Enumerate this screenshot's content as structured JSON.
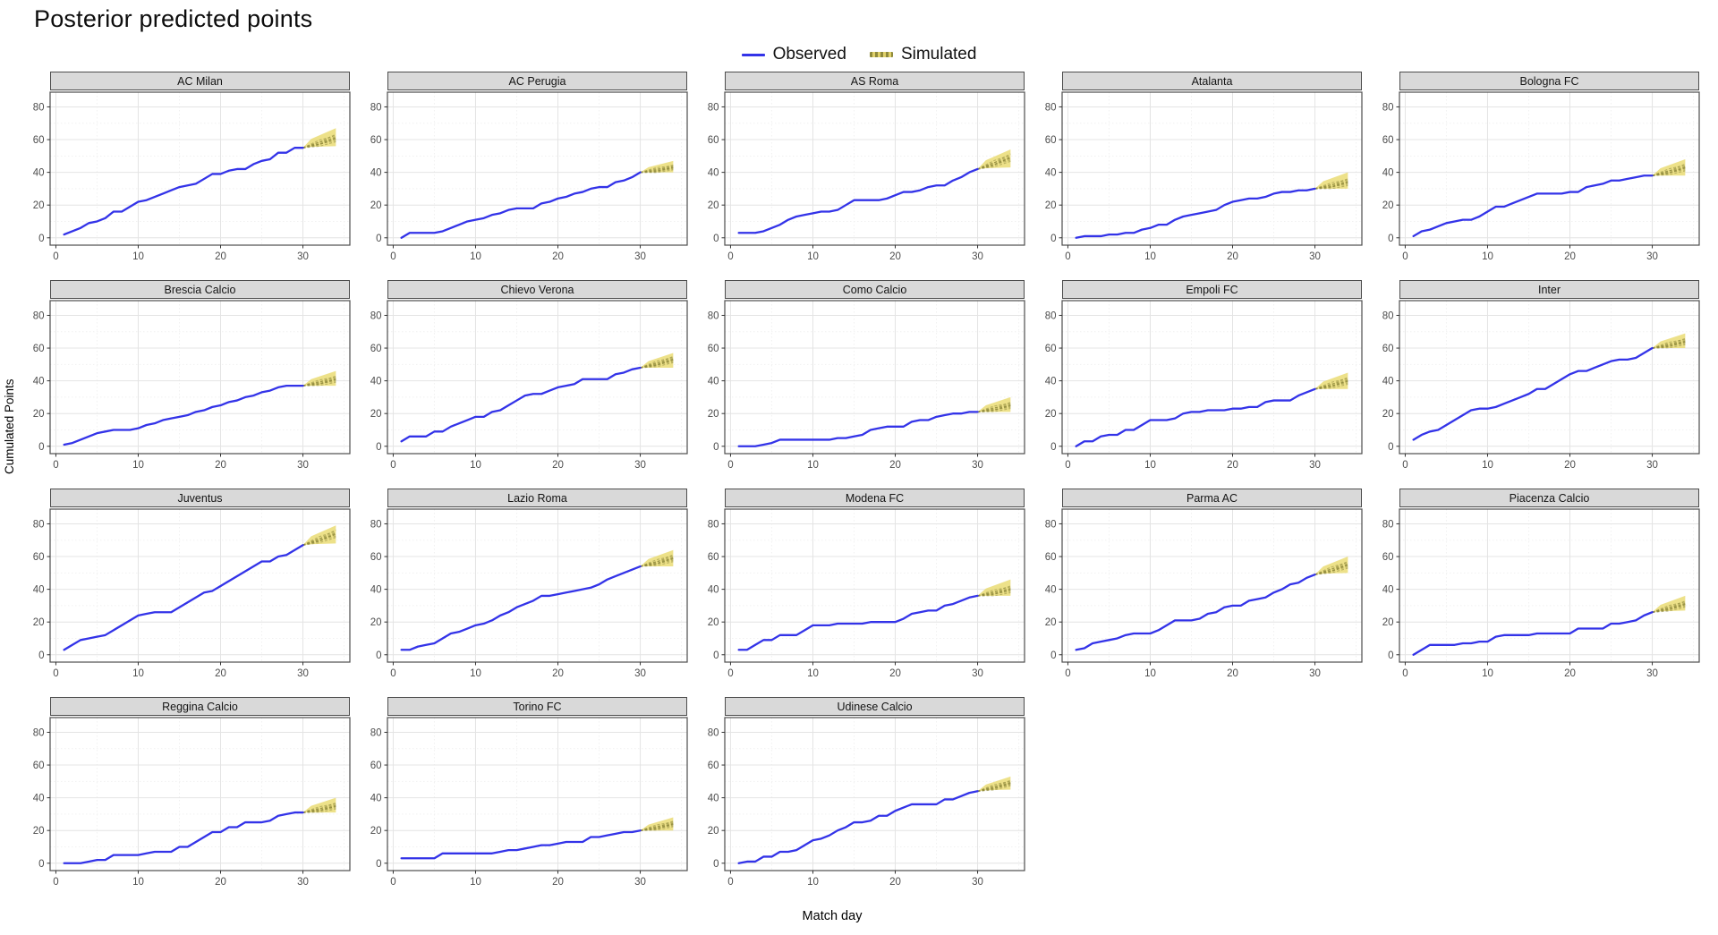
{
  "page": {
    "title": "Posterior predicted points"
  },
  "legend": {
    "items": [
      {
        "label": "Observed",
        "type": "line",
        "color": "#3333E8"
      },
      {
        "label": "Simulated",
        "type": "fan",
        "color": "#8F8A3C",
        "fill": "#E8D96B"
      }
    ]
  },
  "axes": {
    "x_label": "Match day",
    "y_label": "Cumulated Points",
    "x_ticks": [
      0,
      10,
      20,
      30
    ],
    "y_ticks": [
      0,
      20,
      40,
      60,
      80
    ],
    "x_minor": [
      5,
      15,
      25,
      35
    ],
    "y_minor": [
      10,
      30,
      50,
      70
    ],
    "x_range": [
      -0.7,
      35.7
    ],
    "y_range": [
      -4.5,
      89
    ]
  },
  "colors": {
    "observed_line": "#3333E8",
    "fan_fill": "#E8D96B",
    "fan_strand": "#8F8A3C",
    "facet_header_bg": "#D9D9D9",
    "panel_border": "#4D4D4D",
    "grid_major": "#E4E4E4",
    "grid_minor": "#F1F1F1",
    "tick_label": "#4D4D4D"
  },
  "chart_data": {
    "type": "line",
    "title": "Posterior predicted points",
    "xlabel": "Match day",
    "ylabel": "Cumulated Points",
    "x_days_observed": "1-30",
    "simulated_span": [
      30,
      34
    ],
    "legend_position": "top-center",
    "facets": [
      {
        "name": "AC Milan",
        "observed": [
          2,
          4,
          6,
          9,
          10,
          12,
          16,
          16,
          19,
          22,
          23,
          25,
          27,
          29,
          31,
          32,
          33,
          36,
          39,
          39,
          41,
          42,
          42,
          45,
          47,
          48,
          52,
          52,
          55,
          55
        ],
        "simulated": {
          "start_day": 30,
          "end_day": 34,
          "start": 55,
          "lower_end": 56,
          "median_end": 61,
          "upper_end": 67
        }
      },
      {
        "name": "AC Perugia",
        "observed": [
          0,
          3,
          3,
          3,
          3,
          4,
          6,
          8,
          10,
          11,
          12,
          14,
          15,
          17,
          18,
          18,
          18,
          21,
          22,
          24,
          25,
          27,
          28,
          30,
          31,
          31,
          34,
          35,
          37,
          40
        ],
        "simulated": {
          "start_day": 30,
          "end_day": 34,
          "start": 40,
          "lower_end": 40,
          "median_end": 43,
          "upper_end": 47
        }
      },
      {
        "name": "AS Roma",
        "observed": [
          3,
          3,
          3,
          4,
          6,
          8,
          11,
          13,
          14,
          15,
          16,
          16,
          17,
          20,
          23,
          23,
          23,
          23,
          24,
          26,
          28,
          28,
          29,
          31,
          32,
          32,
          35,
          37,
          40,
          42
        ],
        "simulated": {
          "start_day": 30,
          "end_day": 34,
          "start": 42,
          "lower_end": 43,
          "median_end": 49,
          "upper_end": 54
        }
      },
      {
        "name": "Atalanta",
        "observed": [
          0,
          1,
          1,
          1,
          2,
          2,
          3,
          3,
          5,
          6,
          8,
          8,
          11,
          13,
          14,
          15,
          16,
          17,
          20,
          22,
          23,
          24,
          24,
          25,
          27,
          28,
          28,
          29,
          29,
          30
        ],
        "simulated": {
          "start_day": 30,
          "end_day": 34,
          "start": 30,
          "lower_end": 30,
          "median_end": 34,
          "upper_end": 40
        }
      },
      {
        "name": "Bologna FC",
        "observed": [
          1,
          4,
          5,
          7,
          9,
          10,
          11,
          11,
          13,
          16,
          19,
          19,
          21,
          23,
          25,
          27,
          27,
          27,
          27,
          28,
          28,
          31,
          32,
          33,
          35,
          35,
          36,
          37,
          38,
          38
        ],
        "simulated": {
          "start_day": 30,
          "end_day": 34,
          "start": 38,
          "lower_end": 38,
          "median_end": 43,
          "upper_end": 48
        }
      },
      {
        "name": "Brescia Calcio",
        "observed": [
          1,
          2,
          4,
          6,
          8,
          9,
          10,
          10,
          10,
          11,
          13,
          14,
          16,
          17,
          18,
          19,
          21,
          22,
          24,
          25,
          27,
          28,
          30,
          31,
          33,
          34,
          36,
          37,
          37,
          37
        ],
        "simulated": {
          "start_day": 30,
          "end_day": 34,
          "start": 37,
          "lower_end": 37,
          "median_end": 41,
          "upper_end": 46
        }
      },
      {
        "name": "Chievo Verona",
        "observed": [
          3,
          6,
          6,
          6,
          9,
          9,
          12,
          14,
          16,
          18,
          18,
          21,
          22,
          25,
          28,
          31,
          32,
          32,
          34,
          36,
          37,
          38,
          41,
          41,
          41,
          41,
          44,
          45,
          47,
          48
        ],
        "simulated": {
          "start_day": 30,
          "end_day": 34,
          "start": 48,
          "lower_end": 48,
          "median_end": 53,
          "upper_end": 57
        }
      },
      {
        "name": "Como Calcio",
        "observed": [
          0,
          0,
          0,
          1,
          2,
          4,
          4,
          4,
          4,
          4,
          4,
          4,
          5,
          5,
          6,
          7,
          10,
          11,
          12,
          12,
          12,
          15,
          16,
          16,
          18,
          19,
          20,
          20,
          21,
          21
        ],
        "simulated": {
          "start_day": 30,
          "end_day": 34,
          "start": 21,
          "lower_end": 21,
          "median_end": 25,
          "upper_end": 30
        }
      },
      {
        "name": "Empoli FC",
        "observed": [
          0,
          3,
          3,
          6,
          7,
          7,
          10,
          10,
          13,
          16,
          16,
          16,
          17,
          20,
          21,
          21,
          22,
          22,
          22,
          23,
          23,
          24,
          24,
          27,
          28,
          28,
          28,
          31,
          33,
          35
        ],
        "simulated": {
          "start_day": 30,
          "end_day": 34,
          "start": 35,
          "lower_end": 35,
          "median_end": 40,
          "upper_end": 45
        }
      },
      {
        "name": "Inter",
        "observed": [
          4,
          7,
          9,
          10,
          13,
          16,
          19,
          22,
          23,
          23,
          24,
          26,
          28,
          30,
          32,
          35,
          35,
          38,
          41,
          44,
          46,
          46,
          48,
          50,
          52,
          53,
          53,
          54,
          57,
          60
        ],
        "simulated": {
          "start_day": 30,
          "end_day": 34,
          "start": 60,
          "lower_end": 60,
          "median_end": 64,
          "upper_end": 69
        }
      },
      {
        "name": "Juventus",
        "observed": [
          3,
          6,
          9,
          10,
          11,
          12,
          15,
          18,
          21,
          24,
          25,
          26,
          26,
          26,
          29,
          32,
          35,
          38,
          39,
          42,
          45,
          48,
          51,
          54,
          57,
          57,
          60,
          61,
          64,
          67
        ],
        "simulated": {
          "start_day": 30,
          "end_day": 34,
          "start": 67,
          "lower_end": 68,
          "median_end": 74,
          "upper_end": 79
        }
      },
      {
        "name": "Lazio Roma",
        "observed": [
          3,
          3,
          5,
          6,
          7,
          10,
          13,
          14,
          16,
          18,
          19,
          21,
          24,
          26,
          29,
          31,
          33,
          36,
          36,
          37,
          38,
          39,
          40,
          41,
          43,
          46,
          48,
          50,
          52,
          54
        ],
        "simulated": {
          "start_day": 30,
          "end_day": 34,
          "start": 54,
          "lower_end": 54,
          "median_end": 59,
          "upper_end": 64
        }
      },
      {
        "name": "Modena FC",
        "observed": [
          3,
          3,
          6,
          9,
          9,
          12,
          12,
          12,
          15,
          18,
          18,
          18,
          19,
          19,
          19,
          19,
          20,
          20,
          20,
          20,
          22,
          25,
          26,
          27,
          27,
          30,
          31,
          33,
          35,
          36
        ],
        "simulated": {
          "start_day": 30,
          "end_day": 34,
          "start": 36,
          "lower_end": 36,
          "median_end": 40,
          "upper_end": 46
        }
      },
      {
        "name": "Parma AC",
        "observed": [
          3,
          4,
          7,
          8,
          9,
          10,
          12,
          13,
          13,
          13,
          15,
          18,
          21,
          21,
          21,
          22,
          25,
          26,
          29,
          30,
          30,
          33,
          34,
          35,
          38,
          40,
          43,
          44,
          47,
          49
        ],
        "simulated": {
          "start_day": 30,
          "end_day": 34,
          "start": 49,
          "lower_end": 50,
          "median_end": 55,
          "upper_end": 60
        }
      },
      {
        "name": "Piacenza Calcio",
        "observed": [
          0,
          3,
          6,
          6,
          6,
          6,
          7,
          7,
          8,
          8,
          11,
          12,
          12,
          12,
          12,
          13,
          13,
          13,
          13,
          13,
          16,
          16,
          16,
          16,
          19,
          19,
          20,
          21,
          24,
          26
        ],
        "simulated": {
          "start_day": 30,
          "end_day": 34,
          "start": 26,
          "lower_end": 27,
          "median_end": 31,
          "upper_end": 36
        }
      },
      {
        "name": "Reggina Calcio",
        "observed": [
          0,
          0,
          0,
          1,
          2,
          2,
          5,
          5,
          5,
          5,
          6,
          7,
          7,
          7,
          10,
          10,
          13,
          16,
          19,
          19,
          22,
          22,
          25,
          25,
          25,
          26,
          29,
          30,
          31,
          31
        ],
        "simulated": {
          "start_day": 30,
          "end_day": 34,
          "start": 31,
          "lower_end": 31,
          "median_end": 35,
          "upper_end": 40
        }
      },
      {
        "name": "Torino FC",
        "observed": [
          3,
          3,
          3,
          3,
          3,
          6,
          6,
          6,
          6,
          6,
          6,
          6,
          7,
          8,
          8,
          9,
          10,
          11,
          11,
          12,
          13,
          13,
          13,
          16,
          16,
          17,
          18,
          19,
          19,
          20
        ],
        "simulated": {
          "start_day": 30,
          "end_day": 34,
          "start": 20,
          "lower_end": 20,
          "median_end": 24,
          "upper_end": 28
        }
      },
      {
        "name": "Udinese Calcio",
        "observed": [
          0,
          1,
          1,
          4,
          4,
          7,
          7,
          8,
          11,
          14,
          15,
          17,
          20,
          22,
          25,
          25,
          26,
          29,
          29,
          32,
          34,
          36,
          36,
          36,
          36,
          39,
          39,
          41,
          43,
          44
        ],
        "simulated": {
          "start_day": 30,
          "end_day": 34,
          "start": 44,
          "lower_end": 45,
          "median_end": 49,
          "upper_end": 53
        }
      }
    ]
  }
}
